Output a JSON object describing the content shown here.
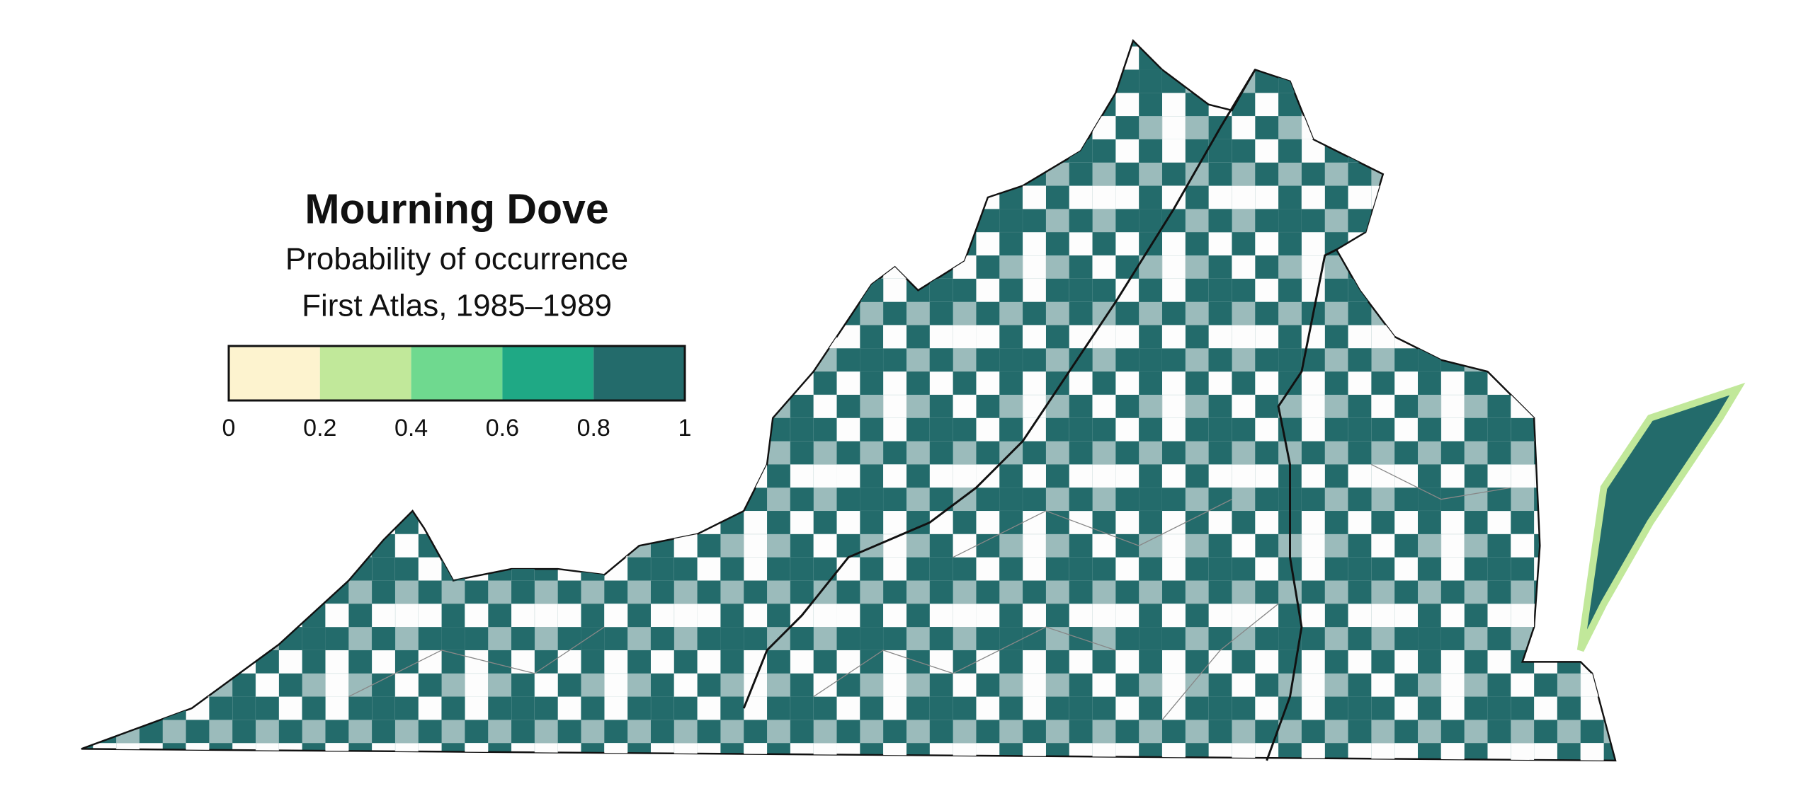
{
  "title": "Mourning Dove",
  "subtitle": "Probability of occurrence",
  "period": "First Atlas, 1985–1989",
  "legend": {
    "colors": [
      "#fdf3cf",
      "#c1e89a",
      "#6fd98f",
      "#1fa985",
      "#236b6b"
    ],
    "ticks": [
      0,
      0.2,
      0.4,
      0.6,
      0.8,
      1
    ]
  }
}
